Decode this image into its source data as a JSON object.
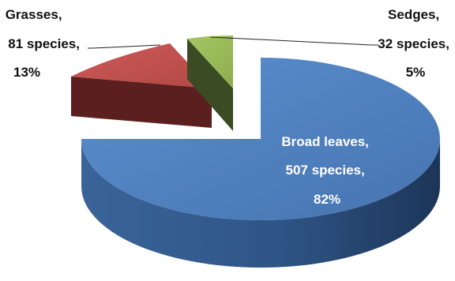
{
  "chart_data": {
    "type": "pie",
    "style": "3d-exploded",
    "slices": [
      {
        "category": "Broad leaves",
        "species": 507,
        "percent": 82,
        "color": "#4f81bd",
        "label_lines": [
          "Broad leaves,",
          "507 species,",
          "82%"
        ]
      },
      {
        "category": "Grasses",
        "species": 81,
        "percent": 13,
        "color": "#c0504d",
        "label_lines": [
          "Grasses,",
          "81 species,",
          "13%"
        ]
      },
      {
        "category": "Sedges",
        "species": 32,
        "percent": 5,
        "color": "#9bbb59",
        "label_lines": [
          "Sedges,",
          "32 species,",
          "5%"
        ]
      }
    ]
  }
}
